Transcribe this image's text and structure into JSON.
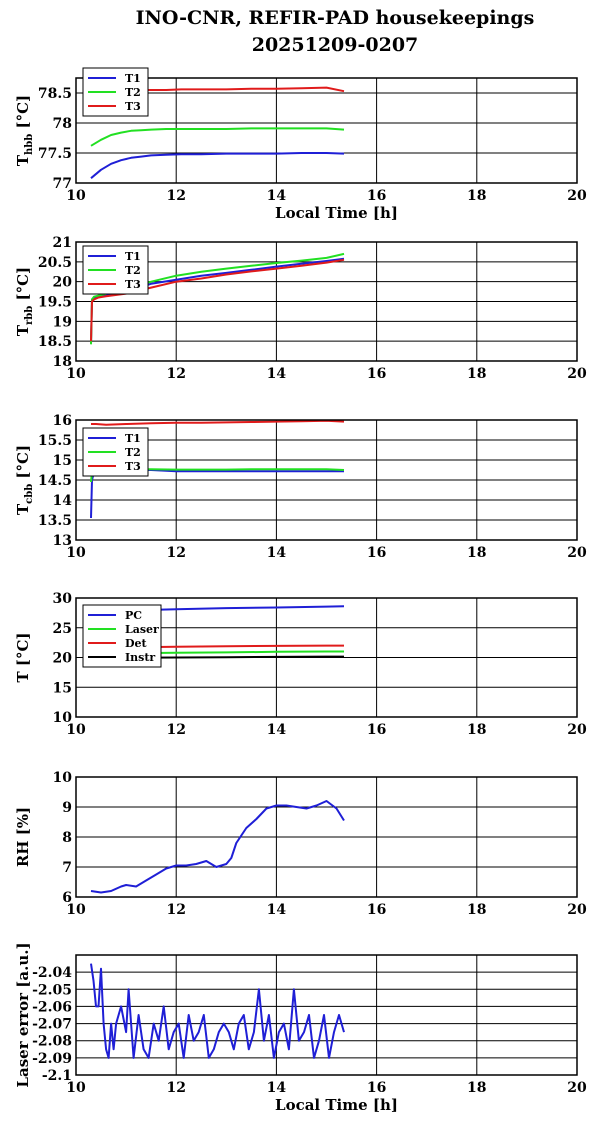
{
  "title": {
    "line1": "INO-CNR, REFIR-PAD housekeepings",
    "line2": "20251209-0207"
  },
  "xlabel_text": "Local Time [h]",
  "colors": {
    "blue": "#1f1fd6",
    "green": "#22e022",
    "red": "#e01b1b",
    "black": "#000000"
  },
  "chart_data": [
    {
      "type": "line",
      "ylabel_main": "T",
      "ylabel_sub": "hbb",
      "ylabel_unit": " [°C]",
      "xlim": [
        10,
        20
      ],
      "ylim": [
        77,
        78.75
      ],
      "xticks": [
        "10",
        "12",
        "14",
        "16",
        "18",
        "20"
      ],
      "yticks": [
        "77",
        "77.5",
        "78",
        "78.5"
      ],
      "ytick_values": [
        77,
        77.5,
        78,
        78.5
      ],
      "xlabel": "Local Time [h]",
      "grid": true,
      "legend": "top-left",
      "series": [
        {
          "name": "T1",
          "color": "blue",
          "x": [
            10.3,
            10.5,
            10.7,
            10.9,
            11.1,
            11.3,
            11.5,
            11.8,
            12.1,
            12.5,
            13,
            13.5,
            14,
            14.5,
            15,
            15.35
          ],
          "y": [
            77.08,
            77.22,
            77.32,
            77.38,
            77.42,
            77.44,
            77.46,
            77.47,
            77.48,
            77.48,
            77.49,
            77.49,
            77.49,
            77.5,
            77.5,
            77.49
          ]
        },
        {
          "name": "T2",
          "color": "green",
          "x": [
            10.3,
            10.5,
            10.7,
            10.9,
            11.1,
            11.3,
            11.5,
            11.8,
            12.1,
            12.5,
            13,
            13.5,
            14,
            14.5,
            15,
            15.35
          ],
          "y": [
            77.62,
            77.72,
            77.8,
            77.84,
            77.87,
            77.88,
            77.89,
            77.9,
            77.9,
            77.9,
            77.9,
            77.91,
            77.91,
            77.91,
            77.91,
            77.89
          ]
        },
        {
          "name": "T3",
          "color": "red",
          "x": [
            10.3,
            10.5,
            10.7,
            10.9,
            11.1,
            11.3,
            11.5,
            11.8,
            12.1,
            12.5,
            13,
            13.5,
            14,
            14.5,
            15,
            15.35
          ],
          "y": [
            78.55,
            78.54,
            78.54,
            78.55,
            78.55,
            78.55,
            78.55,
            78.55,
            78.56,
            78.56,
            78.56,
            78.57,
            78.57,
            78.58,
            78.59,
            78.53
          ]
        }
      ]
    },
    {
      "type": "line",
      "ylabel_main": "T",
      "ylabel_sub": "rbb",
      "ylabel_unit": " [°C]",
      "xlim": [
        10,
        20
      ],
      "ylim": [
        18,
        21
      ],
      "xticks": [
        "10",
        "12",
        "14",
        "16",
        "18",
        "20"
      ],
      "yticks": [
        "18",
        "18.5",
        "19",
        "19.5",
        "20",
        "20.5",
        "21"
      ],
      "ytick_values": [
        18,
        18.5,
        19,
        19.5,
        20,
        20.5,
        21
      ],
      "xlabel": "",
      "grid": true,
      "legend": "top-left",
      "series": [
        {
          "name": "T1",
          "color": "blue",
          "x": [
            10.3,
            10.32,
            10.36,
            10.45,
            10.6,
            11,
            11.5,
            12,
            12.5,
            13,
            13.5,
            14,
            14.5,
            15,
            15.35
          ],
          "y": [
            18.45,
            19.55,
            19.6,
            19.62,
            19.65,
            19.72,
            19.95,
            20.05,
            20.15,
            20.22,
            20.3,
            20.38,
            20.45,
            20.52,
            20.58
          ]
        },
        {
          "name": "T2",
          "color": "green",
          "x": [
            10.3,
            10.32,
            10.36,
            10.45,
            10.6,
            11,
            11.5,
            12,
            12.5,
            13,
            13.5,
            14,
            14.5,
            15,
            15.35
          ],
          "y": [
            18.42,
            19.55,
            19.62,
            19.65,
            19.7,
            19.8,
            20.0,
            20.15,
            20.25,
            20.33,
            20.4,
            20.47,
            20.53,
            20.6,
            20.7
          ]
        },
        {
          "name": "T3",
          "color": "red",
          "x": [
            10.3,
            10.32,
            10.36,
            10.45,
            10.6,
            11,
            11.5,
            12,
            12.5,
            13,
            13.5,
            14,
            14.5,
            15,
            15.35
          ],
          "y": [
            18.5,
            19.5,
            19.55,
            19.6,
            19.63,
            19.7,
            19.85,
            20.0,
            20.08,
            20.18,
            20.26,
            20.33,
            20.4,
            20.48,
            20.55
          ]
        }
      ]
    },
    {
      "type": "line",
      "ylabel_main": "T",
      "ylabel_sub": "cbb",
      "ylabel_unit": " [°C]",
      "xlim": [
        10,
        20
      ],
      "ylim": [
        13,
        16
      ],
      "xticks": [
        "10",
        "12",
        "14",
        "16",
        "18",
        "20"
      ],
      "yticks": [
        "13",
        "13.5",
        "14",
        "14.5",
        "15",
        "15.5",
        "16"
      ],
      "ytick_values": [
        13,
        13.5,
        14,
        14.5,
        15,
        15.5,
        16
      ],
      "xlabel": "",
      "grid": true,
      "legend": "top-left",
      "series": [
        {
          "name": "T1",
          "color": "blue",
          "x": [
            10.3,
            10.32,
            10.36,
            10.45,
            10.6,
            11,
            11.5,
            12,
            12.5,
            13,
            13.5,
            14,
            14.5,
            15,
            15.35
          ],
          "y": [
            13.55,
            14.5,
            14.7,
            14.75,
            14.75,
            14.75,
            14.75,
            14.72,
            14.72,
            14.72,
            14.72,
            14.72,
            14.72,
            14.72,
            14.72
          ]
        },
        {
          "name": "T2",
          "color": "green",
          "x": [
            10.3,
            10.32,
            10.36,
            10.45,
            10.6,
            11,
            11.5,
            12,
            12.5,
            13,
            13.5,
            14,
            14.5,
            15,
            15.35
          ],
          "y": [
            14.45,
            14.7,
            14.75,
            14.77,
            14.77,
            14.77,
            14.77,
            14.76,
            14.76,
            14.76,
            14.77,
            14.77,
            14.77,
            14.77,
            14.75
          ]
        },
        {
          "name": "T3",
          "color": "red",
          "x": [
            10.3,
            10.4,
            10.6,
            11,
            11.5,
            12,
            12.5,
            13,
            13.5,
            14,
            14.5,
            15,
            15.35
          ],
          "y": [
            15.9,
            15.9,
            15.88,
            15.9,
            15.92,
            15.93,
            15.93,
            15.94,
            15.95,
            15.96,
            15.97,
            15.98,
            15.96
          ]
        }
      ]
    },
    {
      "type": "line",
      "ylabel_main": "T [°C]",
      "ylabel_sub": "",
      "ylabel_unit": "",
      "xlim": [
        10,
        20
      ],
      "ylim": [
        10,
        30
      ],
      "xticks": [
        "10",
        "12",
        "14",
        "16",
        "18",
        "20"
      ],
      "yticks": [
        "10",
        "15",
        "20",
        "25",
        "30"
      ],
      "ytick_values": [
        10,
        15,
        20,
        25,
        30
      ],
      "xlabel": "",
      "grid": true,
      "legend": "top-left",
      "series": [
        {
          "name": "PC",
          "color": "blue",
          "x": [
            10.3,
            11,
            12,
            13,
            14,
            15,
            15.35
          ],
          "y": [
            27.6,
            27.9,
            28.1,
            28.3,
            28.4,
            28.55,
            28.6
          ]
        },
        {
          "name": "Laser",
          "color": "green",
          "x": [
            10.3,
            11,
            12,
            13,
            14,
            15,
            15.35
          ],
          "y": [
            20.6,
            20.7,
            20.8,
            20.85,
            20.95,
            21.0,
            21.0
          ]
        },
        {
          "name": "Det",
          "color": "red",
          "x": [
            10.3,
            11,
            12,
            13,
            14,
            15,
            15.35
          ],
          "y": [
            21.6,
            21.7,
            21.8,
            21.9,
            21.95,
            22.0,
            22.0
          ]
        },
        {
          "name": "Instr",
          "color": "black",
          "x": [
            10.3,
            11,
            12,
            13,
            14,
            15,
            15.35
          ],
          "y": [
            19.9,
            19.95,
            20.0,
            20.05,
            20.1,
            20.15,
            20.15
          ]
        }
      ]
    },
    {
      "type": "line",
      "ylabel_main": "RH [%]",
      "ylabel_sub": "",
      "ylabel_unit": "",
      "xlim": [
        10,
        20
      ],
      "ylim": [
        6,
        10
      ],
      "xticks": [
        "10",
        "12",
        "14",
        "16",
        "18",
        "20"
      ],
      "yticks": [
        "6",
        "7",
        "8",
        "9",
        "10"
      ],
      "ytick_values": [
        6,
        7,
        8,
        9,
        10
      ],
      "xlabel": "",
      "grid": true,
      "legend": "none",
      "series": [
        {
          "name": "",
          "color": "blue",
          "x": [
            10.3,
            10.5,
            10.7,
            10.9,
            11,
            11.2,
            11.4,
            11.6,
            11.8,
            12,
            12.2,
            12.4,
            12.6,
            12.8,
            13,
            13.1,
            13.2,
            13.4,
            13.6,
            13.8,
            14,
            14.2,
            14.4,
            14.6,
            14.8,
            15,
            15.2,
            15.35
          ],
          "y": [
            6.2,
            6.15,
            6.2,
            6.35,
            6.4,
            6.35,
            6.55,
            6.75,
            6.95,
            7.05,
            7.05,
            7.1,
            7.2,
            7.0,
            7.1,
            7.3,
            7.8,
            8.3,
            8.6,
            8.95,
            9.05,
            9.05,
            9.0,
            8.95,
            9.05,
            9.2,
            8.95,
            8.55
          ]
        }
      ]
    },
    {
      "type": "line",
      "ylabel_main": "Laser error [a.u.]",
      "ylabel_sub": "",
      "ylabel_unit": "",
      "xlim": [
        10,
        20
      ],
      "ylim": [
        -2.1,
        -2.03
      ],
      "xticks": [
        "10",
        "12",
        "14",
        "16",
        "18",
        "20"
      ],
      "yticks": [
        "-2.1",
        "-2.09",
        "-2.08",
        "-2.07",
        "-2.06",
        "-2.05",
        "-2.04"
      ],
      "ytick_values": [
        -2.1,
        -2.09,
        -2.08,
        -2.07,
        -2.06,
        -2.05,
        -2.04
      ],
      "xlabel": "Local Time [h]",
      "grid": true,
      "legend": "none",
      "series": [
        {
          "name": "",
          "color": "blue",
          "x": [
            10.3,
            10.35,
            10.4,
            10.45,
            10.5,
            10.55,
            10.6,
            10.65,
            10.7,
            10.75,
            10.8,
            10.9,
            11,
            11.05,
            11.15,
            11.25,
            11.35,
            11.45,
            11.55,
            11.65,
            11.75,
            11.85,
            11.95,
            12.05,
            12.15,
            12.25,
            12.35,
            12.45,
            12.55,
            12.65,
            12.75,
            12.85,
            12.95,
            13.05,
            13.15,
            13.25,
            13.35,
            13.45,
            13.55,
            13.65,
            13.75,
            13.85,
            13.95,
            14.05,
            14.15,
            14.25,
            14.35,
            14.45,
            14.55,
            14.65,
            14.75,
            14.85,
            14.95,
            15.05,
            15.15,
            15.25,
            15.35
          ],
          "y": [
            -2.035,
            -2.045,
            -2.06,
            -2.06,
            -2.038,
            -2.07,
            -2.085,
            -2.09,
            -2.07,
            -2.085,
            -2.07,
            -2.06,
            -2.075,
            -2.05,
            -2.09,
            -2.065,
            -2.085,
            -2.09,
            -2.07,
            -2.08,
            -2.06,
            -2.085,
            -2.075,
            -2.07,
            -2.09,
            -2.065,
            -2.08,
            -2.075,
            -2.065,
            -2.09,
            -2.085,
            -2.075,
            -2.07,
            -2.075,
            -2.085,
            -2.07,
            -2.065,
            -2.085,
            -2.075,
            -2.05,
            -2.08,
            -2.065,
            -2.09,
            -2.075,
            -2.07,
            -2.085,
            -2.05,
            -2.08,
            -2.075,
            -2.065,
            -2.09,
            -2.08,
            -2.065,
            -2.09,
            -2.075,
            -2.065,
            -2.075
          ]
        }
      ]
    }
  ]
}
